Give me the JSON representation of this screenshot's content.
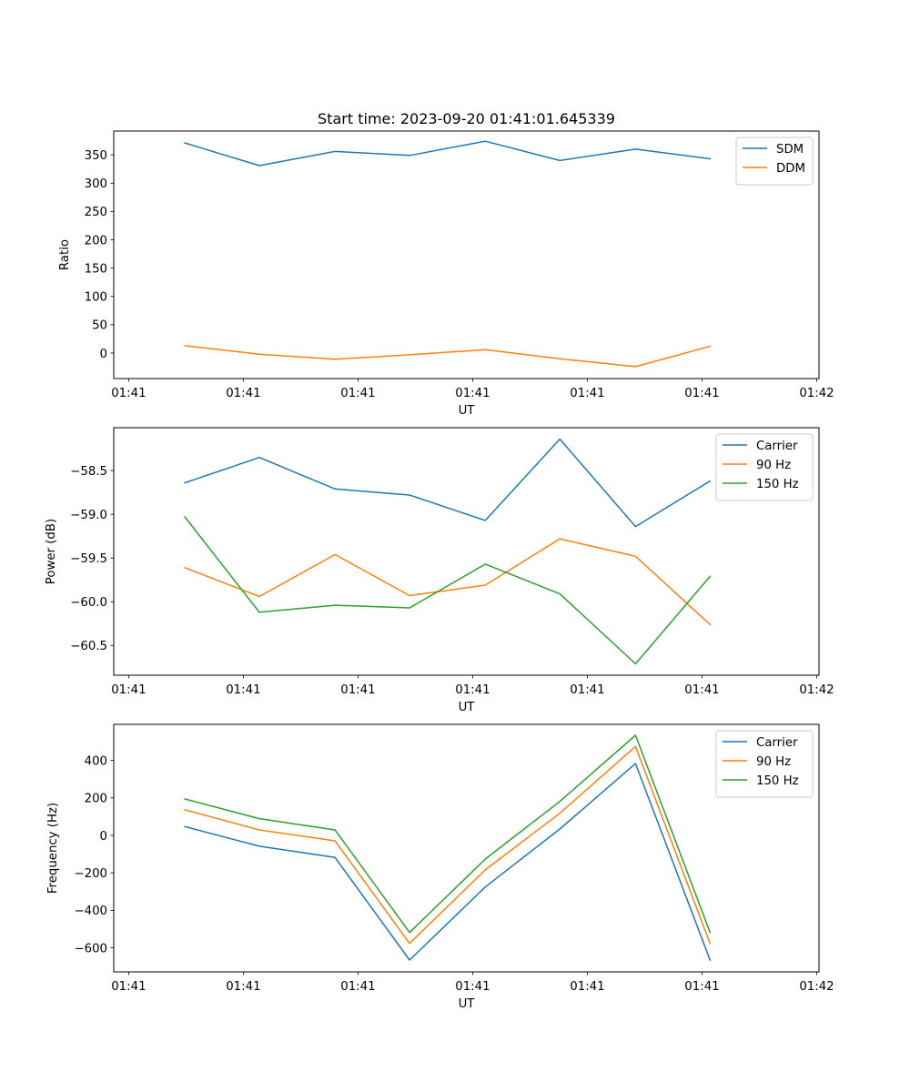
{
  "chart_data": [
    {
      "type": "line",
      "title": "Start time: 2023-09-20 01:41:01.645339",
      "xlabel": "UT",
      "ylabel": "Ratio",
      "x_unit": "seconds after 01:41:00",
      "x": [
        4.9,
        11.4,
        18.0,
        24.5,
        31.1,
        37.6,
        44.2,
        50.7
      ],
      "xlim": [
        -1.3,
        60.2
      ],
      "xticks": [
        0,
        10,
        20,
        30,
        40,
        50,
        60
      ],
      "xtick_labels": [
        "01:41",
        "01:41",
        "01:41",
        "01:41",
        "01:41",
        "01:41",
        "01:42"
      ],
      "ylim": [
        -45,
        392
      ],
      "yticks": [
        0,
        50,
        100,
        150,
        200,
        250,
        300,
        350
      ],
      "ytick_labels": [
        "0",
        "50",
        "100",
        "150",
        "200",
        "250",
        "300",
        "350"
      ],
      "legend": "top-right",
      "grid": false,
      "series": [
        {
          "name": "SDM",
          "color": "#1f77b4",
          "values": [
            371,
            331,
            356,
            349,
            374,
            340,
            360,
            343
          ]
        },
        {
          "name": "DDM",
          "color": "#ff7f0e",
          "values": [
            13,
            -2,
            -11,
            -3,
            6,
            -10,
            -24,
            12
          ]
        }
      ]
    },
    {
      "type": "line",
      "title": "",
      "xlabel": "UT",
      "ylabel": "Power (dB)",
      "x_unit": "seconds after 01:41:00",
      "x": [
        4.9,
        11.4,
        18.0,
        24.5,
        31.1,
        37.6,
        44.2,
        50.7
      ],
      "xlim": [
        -1.3,
        60.2
      ],
      "xticks": [
        0,
        10,
        20,
        30,
        40,
        50,
        60
      ],
      "xtick_labels": [
        "01:41",
        "01:41",
        "01:41",
        "01:41",
        "01:41",
        "01:41",
        "01:42"
      ],
      "ylim": [
        -60.84,
        -58.01
      ],
      "yticks": [
        -58.5,
        -59.0,
        -59.5,
        -60.0,
        -60.5
      ],
      "ytick_labels": [
        "−58.5",
        "−59.0",
        "−59.5",
        "−60.0",
        "−60.5"
      ],
      "legend": "top-right",
      "grid": false,
      "series": [
        {
          "name": "Carrier",
          "color": "#1f77b4",
          "values": [
            -58.64,
            -58.35,
            -58.71,
            -58.78,
            -59.07,
            -58.14,
            -59.14,
            -58.62
          ]
        },
        {
          "name": "90 Hz",
          "color": "#ff7f0e",
          "values": [
            -59.61,
            -59.94,
            -59.46,
            -59.93,
            -59.81,
            -59.28,
            -59.48,
            -60.26
          ]
        },
        {
          "name": "150 Hz",
          "color": "#2ca02c",
          "values": [
            -59.03,
            -60.12,
            -60.04,
            -60.07,
            -59.57,
            -59.91,
            -60.71,
            -59.71
          ]
        }
      ]
    },
    {
      "type": "line",
      "title": "",
      "xlabel": "UT",
      "ylabel": "Frequency (Hz)",
      "x_unit": "seconds after 01:41:00",
      "x": [
        4.9,
        11.4,
        18.0,
        24.5,
        31.1,
        37.6,
        44.2,
        50.7
      ],
      "xlim": [
        -1.3,
        60.2
      ],
      "xticks": [
        0,
        10,
        20,
        30,
        40,
        50,
        60
      ],
      "xtick_labels": [
        "01:41",
        "01:41",
        "01:41",
        "01:41",
        "01:41",
        "01:41",
        "01:42"
      ],
      "ylim": [
        -728,
        592
      ],
      "yticks": [
        400,
        200,
        0,
        -200,
        -400,
        -600
      ],
      "ytick_labels": [
        "400",
        "200",
        "0",
        "−200",
        "−400",
        "−600"
      ],
      "legend": "top-right",
      "grid": false,
      "series": [
        {
          "name": "Carrier",
          "color": "#1f77b4",
          "values": [
            47,
            -58,
            -118,
            -665,
            -275,
            34,
            383,
            -665
          ]
        },
        {
          "name": "90 Hz",
          "color": "#ff7f0e",
          "values": [
            137,
            29,
            -29,
            -576,
            -184,
            118,
            474,
            -576
          ]
        },
        {
          "name": "150 Hz",
          "color": "#2ca02c",
          "values": [
            194,
            89,
            29,
            -518,
            -126,
            181,
            534,
            -518
          ]
        }
      ]
    }
  ]
}
